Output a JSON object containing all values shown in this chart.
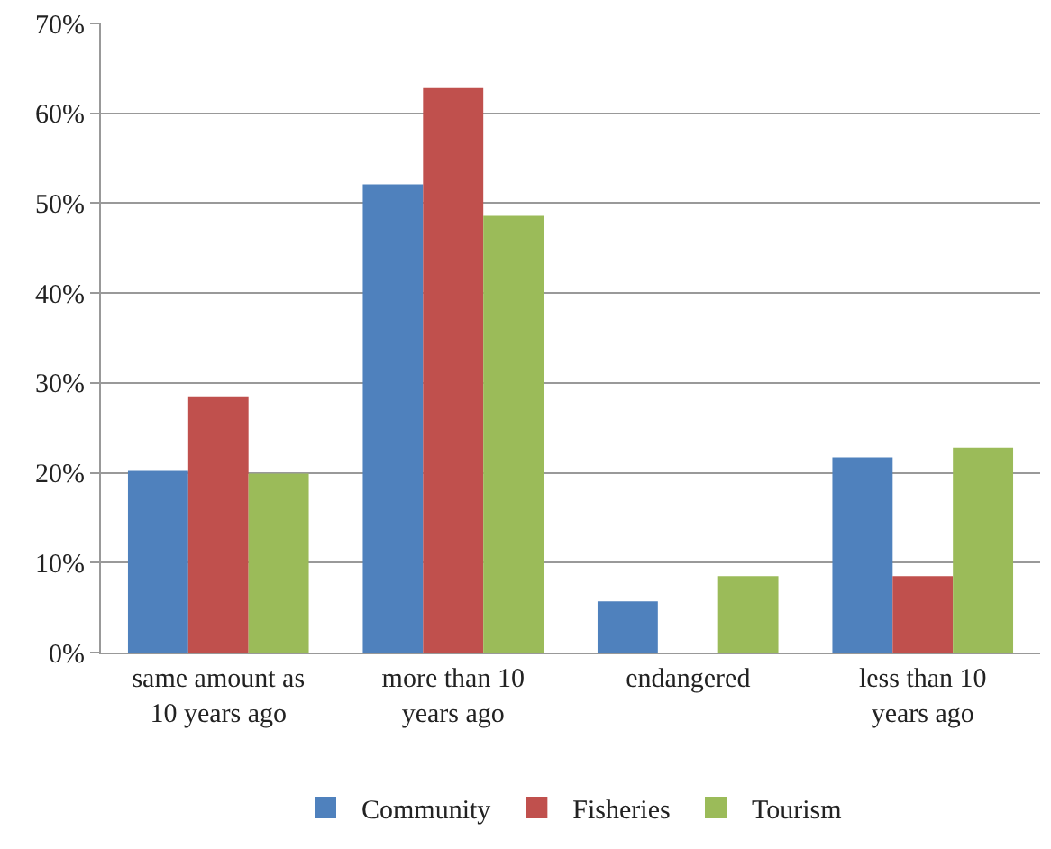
{
  "chart_data": {
    "type": "bar",
    "categories": [
      "same amount as 10 years ago",
      "more than 10 years ago",
      "endangered",
      "less than 10 years ago"
    ],
    "series": [
      {
        "name": "Community",
        "color": "#4f81bd",
        "values": [
          20.2,
          52.1,
          5.7,
          21.7
        ]
      },
      {
        "name": "Fisheries",
        "color": "#c0504d",
        "values": [
          28.5,
          62.8,
          null,
          8.5
        ]
      },
      {
        "name": "Tourism",
        "color": "#9bbb59",
        "values": [
          19.9,
          48.6,
          8.5,
          22.8
        ]
      }
    ],
    "ylim": [
      0,
      70
    ],
    "yticks": [
      {
        "value": 0,
        "label": "0%"
      },
      {
        "value": 10,
        "label": "10%"
      },
      {
        "value": 20,
        "label": "20%"
      },
      {
        "value": 30,
        "label": "30%"
      },
      {
        "value": 40,
        "label": "40%"
      },
      {
        "value": 50,
        "label": "50%"
      },
      {
        "value": 60,
        "label": "60%"
      },
      {
        "value": 70,
        "label": "70%"
      }
    ],
    "grid": "y",
    "legend": "bottom"
  }
}
